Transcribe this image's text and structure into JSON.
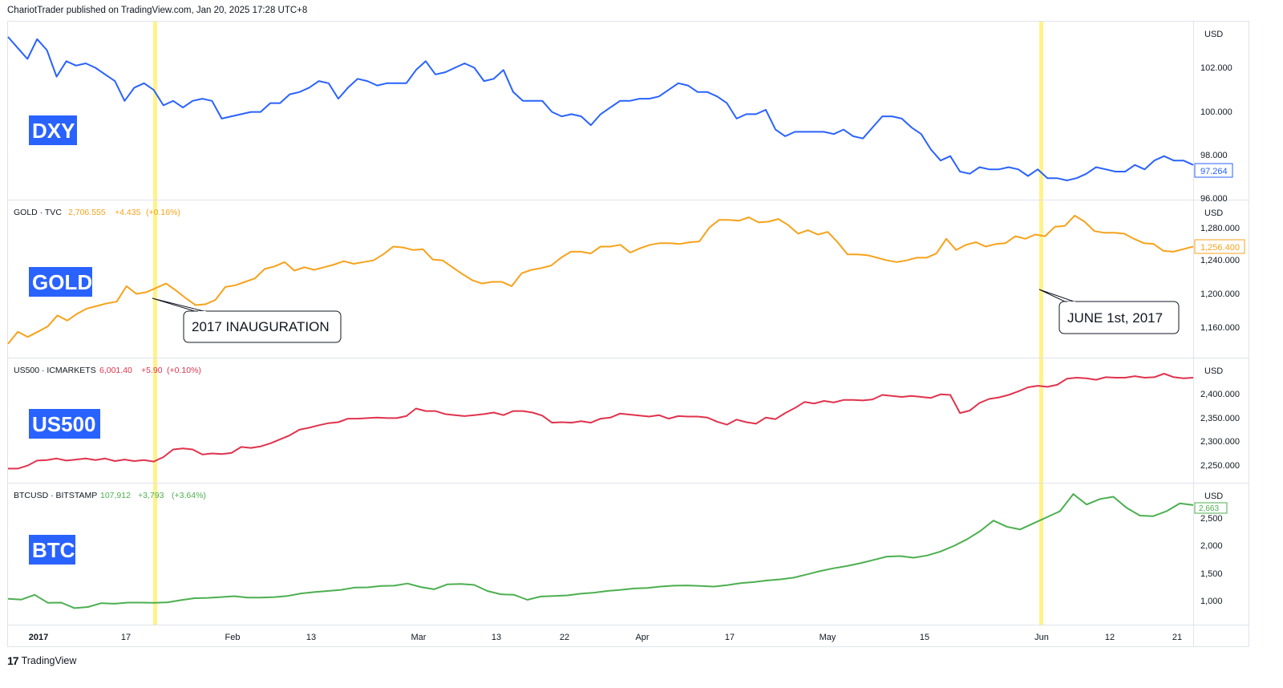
{
  "header": {
    "publisher_line": "ChariotTrader published on TradingView.com, Jan 20, 2025 17:28 UTC+8"
  },
  "footer": {
    "brand_text": "TradingView",
    "logo_icon": "tradingview-logo-icon"
  },
  "colors": {
    "dxy": "#2962ff",
    "gold": "#f7a21b",
    "us500": "#e0334d",
    "btc": "#4caf50",
    "ticker_bg": "#2962ff",
    "highlight": "#fff176"
  },
  "x_axis": {
    "labels": [
      "2017",
      "17",
      "Feb",
      "13",
      "Mar",
      "13",
      "22",
      "Apr",
      "17",
      "May",
      "15",
      "Jun",
      "12",
      "21"
    ]
  },
  "highlights": [
    "2017 INAUGURATION",
    "JUNE 1st, 2017"
  ],
  "annotations": {
    "inauguration": "2017 INAUGURATION",
    "june": "JUNE 1st, 2017"
  },
  "chart_data": [
    {
      "type": "line",
      "ticker_label": "DXY",
      "currency": "USD",
      "y_ticks": [
        "102.000",
        "100.000",
        "98.000",
        "96.000"
      ],
      "ylim": [
        96,
        103.3
      ],
      "last_value_label": "97.264",
      "series": [
        {
          "values": [
            103.3,
            102.8,
            102.3,
            103.2,
            102.7,
            101.5,
            102.2,
            102.0,
            102.1,
            101.9,
            101.6,
            101.3,
            100.4,
            101.0,
            101.2,
            100.9,
            100.2,
            100.4,
            100.1,
            100.4,
            100.5,
            100.4,
            99.6,
            99.7,
            99.8,
            99.9,
            99.9,
            100.3,
            100.3,
            100.7,
            100.8,
            101.0,
            101.3,
            101.2,
            100.5,
            101.0,
            101.4,
            101.3,
            101.1,
            101.2,
            101.2,
            101.2,
            101.8,
            102.2,
            101.6,
            101.7,
            101.9,
            102.1,
            101.9,
            101.3,
            101.4,
            101.8,
            100.8,
            100.4,
            100.4,
            100.4,
            99.9,
            99.7,
            99.8,
            99.7,
            99.3,
            99.8,
            100.1,
            100.4,
            100.4,
            100.5,
            100.5,
            100.6,
            100.9,
            101.2,
            101.1,
            100.8,
            100.8,
            100.6,
            100.3,
            99.6,
            99.8,
            99.8,
            100.0,
            99.1,
            98.8,
            99.0,
            99.0,
            99.0,
            99.0,
            98.9,
            99.1,
            98.8,
            98.7,
            99.2,
            99.7,
            99.7,
            99.6,
            99.2,
            98.9,
            98.2,
            97.7,
            97.9,
            97.2,
            97.1,
            97.4,
            97.3,
            97.3,
            97.4,
            97.3,
            97.0,
            97.3,
            96.9,
            96.9,
            96.8,
            96.9,
            97.1,
            97.4,
            97.3,
            97.2,
            97.2,
            97.5,
            97.3,
            97.7,
            97.9,
            97.7,
            97.7,
            97.5
          ]
        }
      ]
    },
    {
      "type": "line",
      "ticker_label": "GOLD",
      "legend": {
        "symbol": "GOLD · TVC",
        "price": "2,706.555",
        "change": "+4.435",
        "change_pct": "(+0.16%)"
      },
      "currency": "USD",
      "y_ticks": [
        "1,280.000",
        "1,240.000",
        "1,200.000",
        "1,160.000"
      ],
      "ylim": [
        1140,
        1290
      ],
      "last_value_label": "1,256.400",
      "series": [
        {
          "values": [
            1143,
            1157,
            1151,
            1157,
            1163,
            1176,
            1170,
            1178,
            1184,
            1187,
            1190,
            1192,
            1210,
            1201,
            1203,
            1208,
            1213,
            1205,
            1196,
            1188,
            1189,
            1194,
            1209,
            1211,
            1215,
            1219,
            1230,
            1233,
            1238,
            1228,
            1232,
            1229,
            1232,
            1235,
            1239,
            1236,
            1238,
            1240,
            1247,
            1256,
            1255,
            1252,
            1253,
            1241,
            1240,
            1232,
            1224,
            1217,
            1213,
            1215,
            1215,
            1210,
            1225,
            1229,
            1231,
            1234,
            1243,
            1250,
            1250,
            1248,
            1256,
            1256,
            1258,
            1249,
            1254,
            1258,
            1260,
            1260,
            1259,
            1261,
            1262,
            1278,
            1287,
            1287,
            1286,
            1290,
            1284,
            1285,
            1288,
            1281,
            1271,
            1275,
            1270,
            1273,
            1261,
            1247,
            1247,
            1246,
            1243,
            1240,
            1238,
            1240,
            1243,
            1243,
            1248,
            1265,
            1252,
            1258,
            1261,
            1256,
            1259,
            1260,
            1268,
            1265,
            1270,
            1268,
            1279,
            1280,
            1292,
            1285,
            1274,
            1272,
            1272,
            1271,
            1265,
            1260,
            1259,
            1251,
            1250,
            1253,
            1256
          ]
        }
      ]
    },
    {
      "type": "line",
      "ticker_label": "US500",
      "legend": {
        "symbol": "US500 · ICMARKETS",
        "price": "6,001.40",
        "change": "+5.90",
        "change_pct": "(+0.10%)"
      },
      "currency": "USD",
      "y_ticks": [
        "2,400.000",
        "2,350.000",
        "2,300.000",
        "2,250.000"
      ],
      "ylim": [
        2240,
        2440
      ],
      "last_value_label": "",
      "series": [
        {
          "values": [
            2252,
            2252,
            2258,
            2268,
            2269,
            2272,
            2268,
            2270,
            2272,
            2269,
            2272,
            2267,
            2270,
            2267,
            2269,
            2266,
            2275,
            2290,
            2292,
            2290,
            2280,
            2282,
            2281,
            2283,
            2295,
            2293,
            2296,
            2302,
            2310,
            2318,
            2329,
            2333,
            2338,
            2342,
            2344,
            2351,
            2351,
            2352,
            2353,
            2352,
            2352,
            2356,
            2371,
            2366,
            2366,
            2360,
            2358,
            2356,
            2358,
            2360,
            2363,
            2358,
            2366,
            2366,
            2363,
            2357,
            2343,
            2344,
            2343,
            2346,
            2343,
            2351,
            2353,
            2361,
            2359,
            2357,
            2355,
            2358,
            2351,
            2356,
            2355,
            2355,
            2353,
            2345,
            2339,
            2349,
            2344,
            2341,
            2353,
            2350,
            2362,
            2372,
            2384,
            2381,
            2386,
            2383,
            2388,
            2388,
            2387,
            2389,
            2398,
            2396,
            2394,
            2396,
            2394,
            2392,
            2399,
            2398,
            2362,
            2367,
            2382,
            2390,
            2393,
            2398,
            2405,
            2413,
            2416,
            2414,
            2418,
            2430,
            2432,
            2431,
            2428,
            2433,
            2432,
            2432,
            2435,
            2432,
            2433,
            2440,
            2433,
            2431,
            2432
          ]
        }
      ]
    },
    {
      "type": "line",
      "ticker_label": "BTC",
      "legend": {
        "symbol": "BTCUSD · BITSTAMP",
        "price": "107,912",
        "change": "+3,793",
        "change_pct": "(+3.64%)"
      },
      "currency": "USD",
      "y_ticks": [
        "2,500",
        "2,000",
        "1,500",
        "1,000"
      ],
      "ylim": [
        700,
        2900
      ],
      "last_value_label": "2,663",
      "series": [
        {
          "values": [
            980,
            965,
            1050,
            905,
            910,
            810,
            830,
            900,
            890,
            910,
            910,
            905,
            915,
            955,
            990,
            995,
            1010,
            1025,
            1000,
            1000,
            1010,
            1030,
            1075,
            1100,
            1120,
            1140,
            1180,
            1185,
            1210,
            1215,
            1255,
            1190,
            1150,
            1240,
            1245,
            1230,
            1120,
            1060,
            1050,
            960,
            1020,
            1030,
            1040,
            1070,
            1090,
            1120,
            1140,
            1165,
            1175,
            1200,
            1215,
            1220,
            1210,
            1200,
            1225,
            1260,
            1280,
            1310,
            1330,
            1360,
            1420,
            1480,
            1530,
            1570,
            1620,
            1680,
            1740,
            1750,
            1720,
            1760,
            1830,
            1930,
            2050,
            2200,
            2390,
            2280,
            2230,
            2340,
            2450,
            2560,
            2870,
            2680,
            2780,
            2820,
            2620,
            2480,
            2470,
            2560,
            2700,
            2670
          ]
        }
      ]
    }
  ]
}
